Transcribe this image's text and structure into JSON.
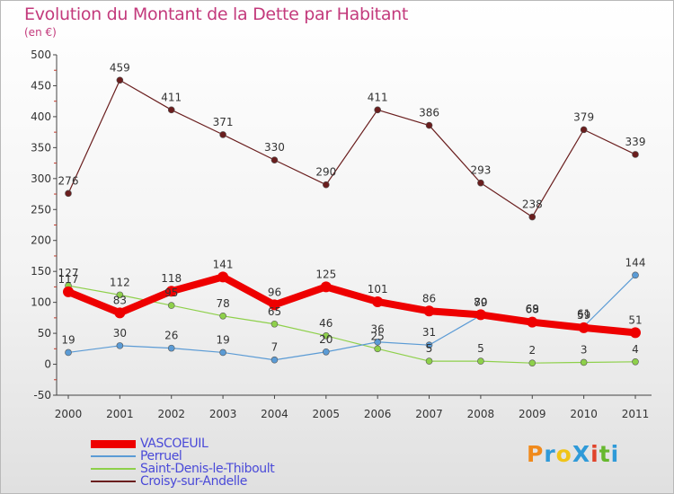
{
  "chart_data": {
    "type": "line",
    "title": "Evolution du Montant de la Dette par Habitant",
    "subtitle": "(en €)",
    "x": [
      "2000",
      "2001",
      "2002",
      "2003",
      "2004",
      "2005",
      "2006",
      "2007",
      "2008",
      "2009",
      "2010",
      "2011"
    ],
    "ylim": [
      -50,
      500
    ],
    "yticks": [
      "-50",
      "0",
      "50",
      "100",
      "150",
      "200",
      "250",
      "300",
      "350",
      "400",
      "450",
      "500"
    ],
    "grid": false,
    "legend_position": "bottom-left",
    "series": [
      {
        "name": "VASCOEUIL",
        "color": "#ee0000",
        "values": [
          117,
          83,
          118,
          141,
          96,
          125,
          101,
          86,
          80,
          68,
          59,
          51
        ],
        "labels": [
          "117",
          "83",
          "118",
          "141",
          "96",
          "125",
          "101",
          "86",
          "80",
          "68",
          "59",
          "51"
        ]
      },
      {
        "name": "Perruel",
        "color": "#5b9bd5",
        "values": [
          19,
          30,
          26,
          19,
          7,
          20,
          36,
          31,
          79,
          69,
          61,
          144
        ],
        "labels": [
          "19",
          "30",
          "26",
          "19",
          "7",
          "20",
          "36",
          "31",
          "79",
          "69",
          "61",
          "144"
        ]
      },
      {
        "name": "Saint-Denis-le-Thiboult",
        "color": "#8ed04a",
        "values": [
          127,
          112,
          95,
          78,
          65,
          46,
          25,
          5,
          5,
          2,
          3,
          4
        ],
        "labels": [
          "127",
          "112",
          "95",
          "78",
          "65",
          "46",
          "25",
          "5",
          "5",
          "2",
          "3",
          "4"
        ]
      },
      {
        "name": "Croisy-sur-Andelle",
        "color": "#6a1e1e",
        "values": [
          276,
          459,
          411,
          371,
          330,
          290,
          411,
          386,
          293,
          238,
          379,
          339
        ],
        "labels": [
          "276",
          "459",
          "411",
          "371",
          "330",
          "290",
          "411",
          "386",
          "293",
          "238",
          "379",
          "339"
        ]
      }
    ]
  },
  "logo": {
    "text": "ProXiti",
    "letters": [
      {
        "ch": "P",
        "color": "#f08a1c"
      },
      {
        "ch": "r",
        "color": "#2f9ad8"
      },
      {
        "ch": "o",
        "color": "#f0c419"
      },
      {
        "ch": "X",
        "color": "#2f9ad8"
      },
      {
        "ch": "i",
        "color": "#e0442b"
      },
      {
        "ch": "t",
        "color": "#66b82e"
      },
      {
        "ch": "i",
        "color": "#2f9ad8"
      }
    ]
  }
}
